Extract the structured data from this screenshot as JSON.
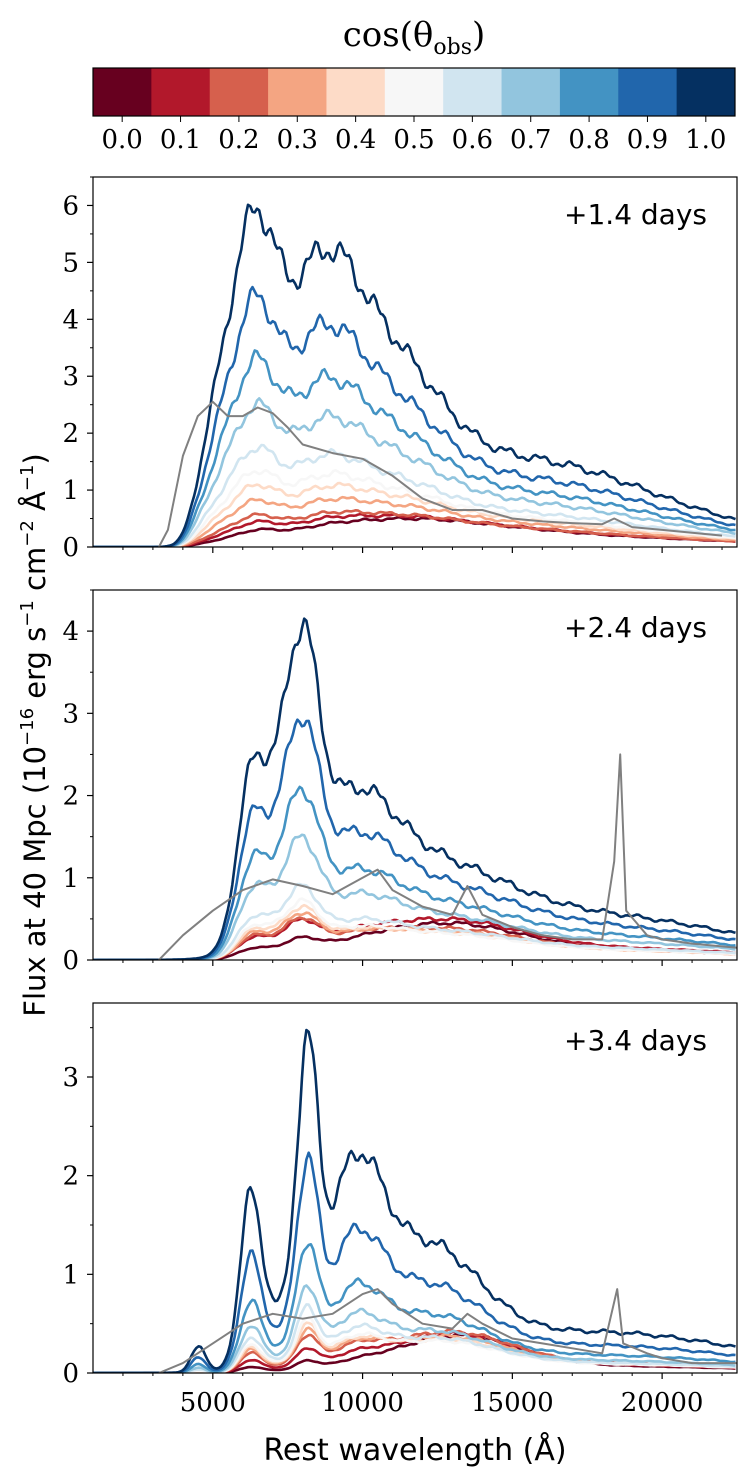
{
  "colorbar": {
    "label_main": "cos(θ",
    "label_sub": "obs",
    "label_close": ")",
    "ticks": [
      "0.0",
      "0.1",
      "0.2",
      "0.3",
      "0.4",
      "0.5",
      "0.6",
      "0.7",
      "0.8",
      "0.9",
      "1.0"
    ],
    "colors": [
      "#67001f",
      "#b2182b",
      "#d6604d",
      "#f4a582",
      "#fddbc7",
      "#f7f7f7",
      "#d1e5f0",
      "#92c5de",
      "#4393c3",
      "#2166ac",
      "#053061"
    ]
  },
  "observed_color": "#808080",
  "chart_data": {
    "type": "line",
    "ylabel": "Flux at 40 Mpc (10^−16 erg s^−1 cm^−2 Å^−1)",
    "ylabel_parts": {
      "a": "Flux at 40 Mpc (10",
      "b": "−16",
      "c": " erg s",
      "d": "−1",
      "e": " cm",
      "f": "−2",
      "g": " Å",
      "h": "−1",
      "i": ")"
    },
    "xlabel": "Rest wavelength (Å)",
    "xlim": [
      1000,
      22500
    ],
    "xticks": [
      5000,
      10000,
      15000,
      20000
    ],
    "xtick_labels": [
      "5000",
      "10000",
      "15000",
      "20000"
    ],
    "series_names": [
      "cos(θobs)=0.0",
      "0.1",
      "0.2",
      "0.3",
      "0.4",
      "0.5",
      "0.6",
      "0.7",
      "0.8",
      "0.9",
      "1.0",
      "observed"
    ],
    "panels": [
      {
        "label": "+1.4 days",
        "ylim": [
          0,
          6.5
        ],
        "yticks": [
          0,
          1,
          2,
          3,
          4,
          5,
          6
        ],
        "ytick_labels": [
          "0",
          "1",
          "2",
          "3",
          "4",
          "5",
          "6"
        ],
        "peaks": [
          0.5,
          0.55,
          0.62,
          0.85,
          1.1,
          1.35,
          1.75,
          2.5,
          3.3,
          4.4,
          5.95
        ],
        "observed": [
          [
            3200,
            0.0
          ],
          [
            3500,
            0.3
          ],
          [
            4000,
            1.6
          ],
          [
            4500,
            2.3
          ],
          [
            5000,
            2.55
          ],
          [
            5500,
            2.3
          ],
          [
            6000,
            2.3
          ],
          [
            6500,
            2.45
          ],
          [
            7000,
            2.35
          ],
          [
            7500,
            2.1
          ],
          [
            8000,
            1.8
          ],
          [
            9000,
            1.65
          ],
          [
            10000,
            1.55
          ],
          [
            11000,
            1.25
          ],
          [
            12000,
            0.85
          ],
          [
            13000,
            0.65
          ],
          [
            14000,
            0.65
          ],
          [
            15000,
            0.5
          ],
          [
            16000,
            0.45
          ],
          [
            17000,
            0.42
          ],
          [
            18000,
            0.4
          ],
          [
            18400,
            0.5
          ],
          [
            19000,
            0.35
          ],
          [
            20000,
            0.3
          ],
          [
            21000,
            0.25
          ],
          [
            22000,
            0.2
          ]
        ]
      },
      {
        "label": "+2.4 days",
        "ylim": [
          0,
          4.5
        ],
        "yticks": [
          0,
          1,
          2,
          3,
          4
        ],
        "ytick_labels": [
          "0",
          "1",
          "2",
          "3",
          "4"
        ],
        "peaks": [
          0.45,
          0.5,
          0.52,
          0.58,
          0.65,
          0.72,
          0.9,
          1.5,
          2.1,
          3.0,
          4.1
        ],
        "observed": [
          [
            3200,
            0.0
          ],
          [
            4000,
            0.3
          ],
          [
            5000,
            0.6
          ],
          [
            6000,
            0.85
          ],
          [
            7000,
            0.98
          ],
          [
            8000,
            0.9
          ],
          [
            9000,
            0.8
          ],
          [
            10000,
            1.0
          ],
          [
            10500,
            1.1
          ],
          [
            11000,
            0.85
          ],
          [
            12000,
            0.65
          ],
          [
            13000,
            0.55
          ],
          [
            13500,
            0.9
          ],
          [
            14000,
            0.55
          ],
          [
            15000,
            0.4
          ],
          [
            16000,
            0.3
          ],
          [
            17000,
            0.25
          ],
          [
            18000,
            0.25
          ],
          [
            18400,
            1.2
          ],
          [
            18600,
            2.5
          ],
          [
            18800,
            0.6
          ],
          [
            19500,
            0.3
          ],
          [
            20000,
            0.25
          ],
          [
            21000,
            0.2
          ],
          [
            22500,
            0.15
          ]
        ]
      },
      {
        "label": "+3.4 days",
        "ylim": [
          0,
          3.75
        ],
        "yticks": [
          0,
          1,
          2,
          3
        ],
        "ytick_labels": [
          "0",
          "1",
          "2",
          "3"
        ],
        "peaks": [
          0.38,
          0.4,
          0.42,
          0.45,
          0.5,
          0.55,
          0.68,
          0.9,
          1.35,
          2.2,
          3.4
        ],
        "observed": [
          [
            3200,
            0.0
          ],
          [
            4000,
            0.1
          ],
          [
            5000,
            0.3
          ],
          [
            6000,
            0.5
          ],
          [
            7000,
            0.6
          ],
          [
            8000,
            0.55
          ],
          [
            9000,
            0.6
          ],
          [
            10000,
            0.8
          ],
          [
            10500,
            0.85
          ],
          [
            11000,
            0.7
          ],
          [
            12000,
            0.5
          ],
          [
            13000,
            0.45
          ],
          [
            13500,
            0.6
          ],
          [
            14000,
            0.5
          ],
          [
            15000,
            0.35
          ],
          [
            16000,
            0.3
          ],
          [
            17000,
            0.25
          ],
          [
            18000,
            0.2
          ],
          [
            18500,
            0.85
          ],
          [
            18700,
            0.3
          ],
          [
            19500,
            0.2
          ],
          [
            20000,
            0.15
          ],
          [
            21000,
            0.1
          ],
          [
            22500,
            0.1
          ]
        ]
      }
    ]
  }
}
